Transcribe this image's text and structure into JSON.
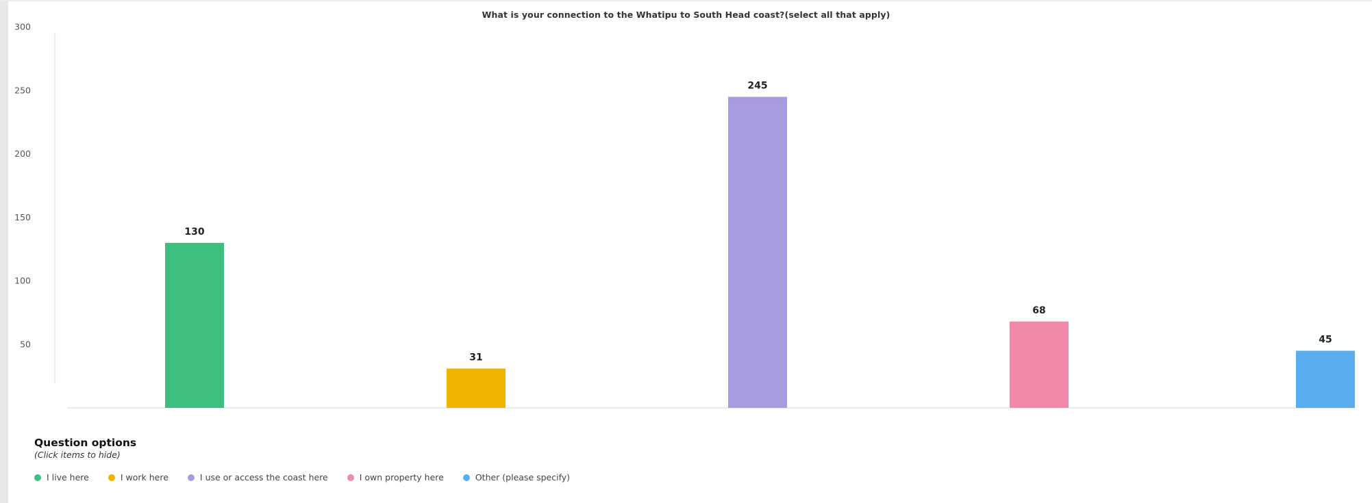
{
  "chart_data": {
    "type": "bar",
    "title": "What is your connection to the Whatipu to South Head coast?(select all that apply)",
    "categories": [
      "I live here",
      "I work here",
      "I use or access the coast here",
      "I own property here",
      "Other (please specify)"
    ],
    "values": [
      130,
      31,
      245,
      68,
      45
    ],
    "colors": [
      "#3fbf7f",
      "#f0b400",
      "#a99be0",
      "#f08aa8",
      "#5aaef0"
    ],
    "ylim": [
      0,
      300
    ],
    "yticks": [
      50,
      100,
      150,
      200,
      250,
      300
    ],
    "xlabel": "",
    "ylabel": "",
    "grid": false,
    "legend_position": "bottom-left"
  },
  "legend": {
    "title": "Question options",
    "subtitle": "(Click items to hide)",
    "items": [
      {
        "label": "I live here",
        "color": "#3fbf7f"
      },
      {
        "label": "I work here",
        "color": "#f0b400"
      },
      {
        "label": "I use or access the coast here",
        "color": "#a99be0"
      },
      {
        "label": "I own property here",
        "color": "#f08aa8"
      },
      {
        "label": "Other (please specify)",
        "color": "#5aaef0"
      }
    ]
  }
}
